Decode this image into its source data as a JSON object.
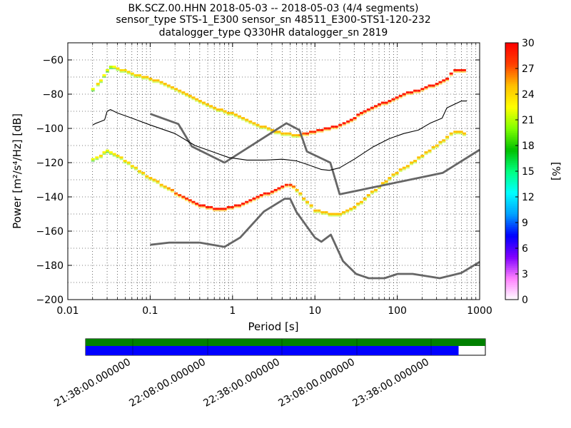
{
  "chart_data": {
    "type": "heatmap",
    "title_lines": [
      "BK.SCZ.00.HHN   2018-05-03 -- 2018-05-03  (4/4 segments)",
      "sensor_type STS-1_E300 sensor_sn 48511_E300-STS1-120-232",
      "datalogger_type Q330HR datalogger_sn 2819"
    ],
    "xlabel": "Period [s]",
    "ylabel": "Power [m²/s⁴/Hz] [dB]",
    "xscale": "log",
    "xlim": [
      0.01,
      1000
    ],
    "ylim": [
      -200,
      -50
    ],
    "xticks": [
      {
        "v": 0.01,
        "label": "0.01"
      },
      {
        "v": 0.1,
        "label": "0.1"
      },
      {
        "v": 1,
        "label": "1"
      },
      {
        "v": 10,
        "label": "10"
      },
      {
        "v": 100,
        "label": "100"
      },
      {
        "v": 1000,
        "label": "1000"
      }
    ],
    "yticks": [
      -60,
      -80,
      -100,
      -120,
      -140,
      -160,
      -180,
      -200
    ],
    "ytick_labels": [
      "−60",
      "−80",
      "−100",
      "−120",
      "−140",
      "−160",
      "−180",
      "−200"
    ],
    "grid": true,
    "colorbar": {
      "label": "[%]",
      "min": 0,
      "max": 30,
      "ticks": [
        0,
        3,
        6,
        9,
        12,
        15,
        18,
        21,
        24,
        27,
        30
      ],
      "colors": [
        "#ffffff",
        "#ff80ff",
        "#8000ff",
        "#0000ff",
        "#00a0ff",
        "#00ffff",
        "#00ff80",
        "#00c000",
        "#80ff00",
        "#ffff00",
        "#ffc000",
        "#ff4000",
        "#ff0000"
      ]
    },
    "series": [
      {
        "type": "nlnm_nhnm",
        "style": "thick-gray",
        "color": "#666666",
        "points": [
          [
            0.1,
            -91.5
          ],
          [
            0.22,
            -97.4
          ],
          [
            0.32,
            -110.5
          ],
          [
            0.8,
            -120
          ],
          [
            4.5,
            -97
          ],
          [
            6.5,
            -101
          ],
          [
            8,
            -113.5
          ],
          [
            15.4,
            -120
          ],
          [
            20,
            -138.5
          ],
          [
            354.8,
            -126
          ],
          [
            1000,
            -112.5
          ]
        ]
      },
      {
        "type": "nlnm_nhnm",
        "style": "thick-gray",
        "color": "#666666",
        "points": [
          [
            0.1,
            -168
          ],
          [
            0.17,
            -166.7
          ],
          [
            0.4,
            -166.7
          ],
          [
            0.8,
            -169.2
          ],
          [
            1.24,
            -163.7
          ],
          [
            2.4,
            -148.6
          ],
          [
            4.3,
            -141.1
          ],
          [
            5,
            -141.1
          ],
          [
            6,
            -149
          ],
          [
            10,
            -163.8
          ],
          [
            12,
            -166.2
          ],
          [
            15.6,
            -162.1
          ],
          [
            21.9,
            -177.5
          ],
          [
            31.6,
            -185
          ],
          [
            45,
            -187.5
          ],
          [
            70,
            -187.5
          ],
          [
            101,
            -185
          ],
          [
            154,
            -185
          ],
          [
            328,
            -187.5
          ],
          [
            600,
            -184.4
          ],
          [
            1000,
            -178
          ]
        ]
      },
      {
        "type": "mode",
        "style": "thin-black",
        "color": "#000000",
        "points": [
          [
            0.02,
            -98
          ],
          [
            0.022,
            -97
          ],
          [
            0.025,
            -96
          ],
          [
            0.028,
            -95
          ],
          [
            0.03,
            -90
          ],
          [
            0.033,
            -89
          ],
          [
            0.04,
            -91
          ],
          [
            0.06,
            -94
          ],
          [
            0.1,
            -98
          ],
          [
            0.2,
            -103
          ],
          [
            0.35,
            -110
          ],
          [
            0.6,
            -114
          ],
          [
            0.9,
            -117
          ],
          [
            1.5,
            -118.5
          ],
          [
            2.5,
            -118.5
          ],
          [
            4,
            -118
          ],
          [
            6,
            -119
          ],
          [
            8,
            -121
          ],
          [
            12,
            -124
          ],
          [
            15,
            -124.5
          ],
          [
            20,
            -123
          ],
          [
            30,
            -118
          ],
          [
            50,
            -111
          ],
          [
            80,
            -106
          ],
          [
            120,
            -103
          ],
          [
            180,
            -101
          ],
          [
            250,
            -97
          ],
          [
            350,
            -94
          ],
          [
            400,
            -88
          ],
          [
            600,
            -84
          ],
          [
            700,
            -84
          ]
        ]
      }
    ],
    "density_bands": [
      {
        "name": "upper",
        "points": [
          [
            0.02,
            -77,
            22
          ],
          [
            0.023,
            -74,
            24
          ],
          [
            0.025,
            -72,
            23
          ],
          [
            0.03,
            -66,
            22
          ],
          [
            0.033,
            -64,
            21
          ],
          [
            0.04,
            -65,
            24
          ],
          [
            0.06,
            -68,
            24
          ],
          [
            0.1,
            -71,
            25
          ],
          [
            0.15,
            -74,
            25
          ],
          [
            0.25,
            -79,
            25
          ],
          [
            0.4,
            -84,
            25
          ],
          [
            0.6,
            -88,
            25
          ],
          [
            0.8,
            -90,
            25
          ],
          [
            1.2,
            -93,
            25
          ],
          [
            2,
            -98,
            25
          ],
          [
            3,
            -101,
            25
          ],
          [
            4,
            -103,
            25
          ],
          [
            6,
            -104,
            25
          ],
          [
            8,
            -103,
            28
          ],
          [
            12,
            -101,
            29
          ],
          [
            18,
            -99,
            29
          ],
          [
            25,
            -96,
            29
          ],
          [
            40,
            -90,
            29
          ],
          [
            60,
            -86,
            29
          ],
          [
            80,
            -84,
            29
          ],
          [
            120,
            -80,
            29
          ],
          [
            200,
            -77,
            29
          ],
          [
            300,
            -74,
            29
          ],
          [
            400,
            -71,
            29
          ],
          [
            500,
            -66,
            29
          ],
          [
            700,
            -66,
            29
          ]
        ]
      },
      {
        "name": "lower",
        "points": [
          [
            0.02,
            -118,
            22
          ],
          [
            0.025,
            -116,
            24
          ],
          [
            0.03,
            -113,
            22
          ],
          [
            0.04,
            -116,
            24
          ],
          [
            0.06,
            -122,
            24
          ],
          [
            0.1,
            -129,
            25
          ],
          [
            0.15,
            -134,
            25
          ],
          [
            0.25,
            -140,
            28
          ],
          [
            0.4,
            -145,
            29
          ],
          [
            0.6,
            -147,
            29
          ],
          [
            0.8,
            -147,
            29
          ],
          [
            1.2,
            -145,
            29
          ],
          [
            2,
            -140,
            29
          ],
          [
            3,
            -137,
            29
          ],
          [
            4,
            -134,
            29
          ],
          [
            5,
            -133,
            28
          ],
          [
            6,
            -136,
            25
          ],
          [
            8,
            -143,
            25
          ],
          [
            10,
            -148,
            25
          ],
          [
            15,
            -150,
            25
          ],
          [
            20,
            -150,
            25
          ],
          [
            30,
            -146,
            25
          ],
          [
            40,
            -141,
            25
          ],
          [
            60,
            -134,
            25
          ],
          [
            80,
            -129,
            25
          ],
          [
            120,
            -123,
            25
          ],
          [
            200,
            -116,
            25
          ],
          [
            300,
            -110,
            25
          ],
          [
            400,
            -105,
            25
          ],
          [
            500,
            -102,
            25
          ],
          [
            700,
            -103,
            25
          ]
        ]
      }
    ],
    "timeline": {
      "labels": [
        "21:38:00.000000",
        "22:08:00.000000",
        "22:38:00.000000",
        "23:08:00.000000",
        "23:38:00.000000"
      ],
      "top_color": "#008000",
      "bottom_color": "#0000ff",
      "bottom_fill_fraction": 0.933
    }
  }
}
